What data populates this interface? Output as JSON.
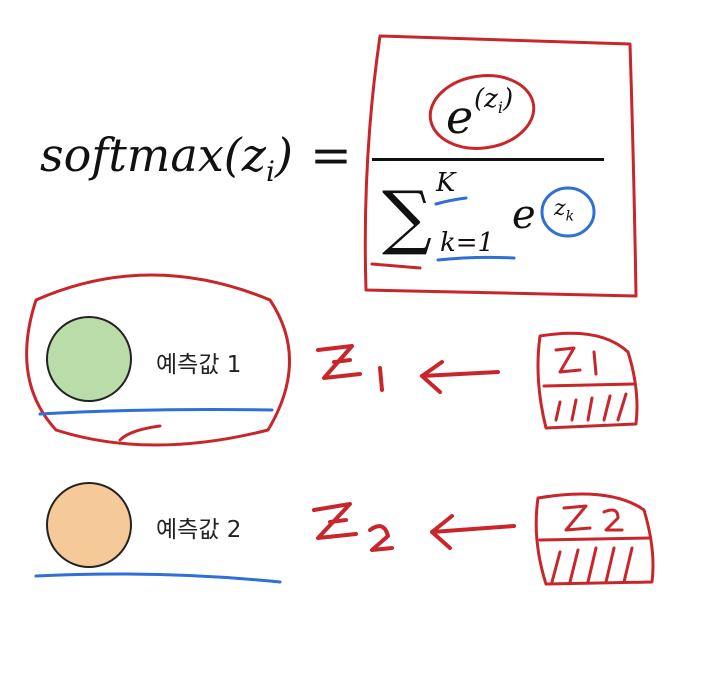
{
  "formula": {
    "lhs": "softmax(z",
    "lhs_sub": "i",
    "lhs_close": ")",
    "equals": "=",
    "numerator_base": "e",
    "numerator_exponent": "(z",
    "numerator_exponent_sub": "i",
    "numerator_exponent_close": ")",
    "sum_symbol": "∑",
    "sum_upper": "K",
    "sum_lower": "k=1",
    "denominator_base": "e",
    "denominator_exponent": "z",
    "denominator_exponent_sub": "k"
  },
  "items": [
    {
      "label": "예측값 1",
      "color": "#b9dca9"
    },
    {
      "label": "예측값 2",
      "color": "#f6c999"
    }
  ],
  "annotations": {
    "red_ink": "#c8262a",
    "blue_ink": "#2f6fd6"
  }
}
